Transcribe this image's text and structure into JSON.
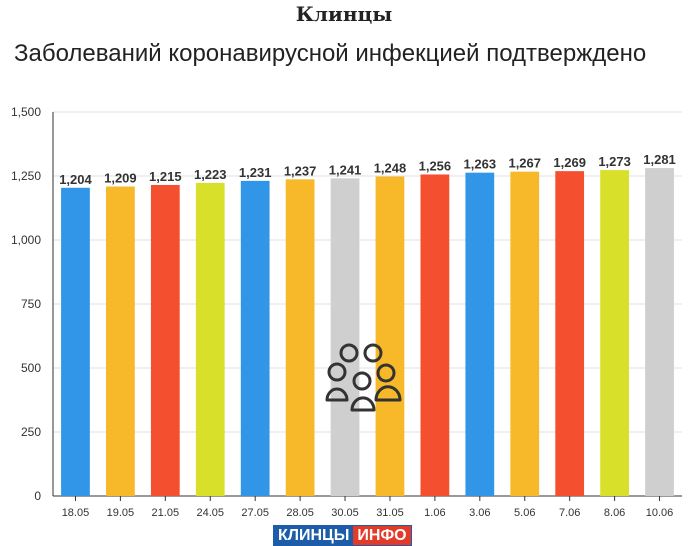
{
  "header": {
    "title": "Клинцы",
    "subtitle": "Заболеваний коронавирусной инфекцией подтверждено"
  },
  "logo": {
    "part1": "КЛИНЦЫ",
    "part2": "ИНФО"
  },
  "icon": "people-group-icon",
  "chart_data": {
    "type": "bar",
    "categories": [
      "18.05",
      "19.05",
      "21.05",
      "24.05",
      "27.05",
      "28.05",
      "30.05",
      "31.05",
      "1.06",
      "3.06",
      "5.06",
      "7.06",
      "8.06",
      "10.06"
    ],
    "values": [
      1204,
      1209,
      1215,
      1223,
      1231,
      1237,
      1241,
      1248,
      1256,
      1263,
      1267,
      1269,
      1273,
      1281
    ],
    "data_labels": [
      "1,204",
      "1,209",
      "1,215",
      "1,223",
      "1,231",
      "1,237",
      "1,241",
      "1,248",
      "1,256",
      "1,263",
      "1,267",
      "1,269",
      "1,273",
      "1,281"
    ],
    "bar_colors": [
      "#3196e8",
      "#f7b829",
      "#f44f2e",
      "#d8e02a",
      "#3196e8",
      "#f7b829",
      "#cfcfcf",
      "#f7b829",
      "#f44f2e",
      "#3196e8",
      "#f7b829",
      "#f44f2e",
      "#d8e02a",
      "#cfcfcf"
    ],
    "yticks": [
      0,
      250,
      500,
      750,
      1000,
      1250,
      1500
    ],
    "ytick_labels": [
      "0",
      "250",
      "500",
      "750",
      "1,000",
      "1,250",
      "1,500"
    ],
    "ylim": [
      0,
      1500
    ],
    "grid": true,
    "xlabel": "",
    "ylabel": ""
  }
}
